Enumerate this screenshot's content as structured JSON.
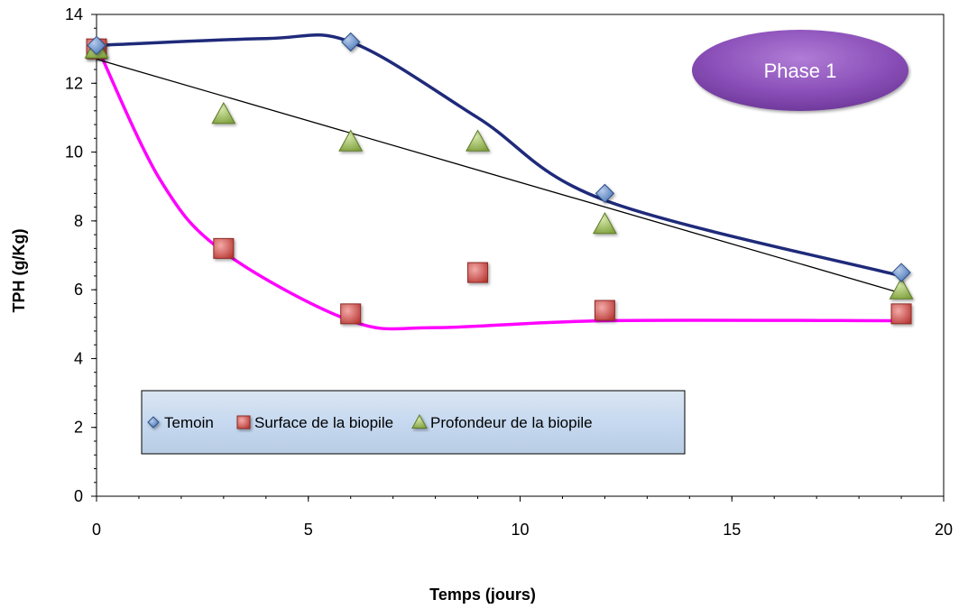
{
  "chart_data": {
    "type": "scatter",
    "xlabel": "Temps (jours)",
    "ylabel": "TPH (g/Kg)",
    "xlim": [
      0,
      20
    ],
    "ylim": [
      0,
      14
    ],
    "x_ticks": [
      0,
      5,
      10,
      15,
      20
    ],
    "y_ticks": [
      0,
      2,
      4,
      6,
      8,
      10,
      12,
      14
    ],
    "grid": false,
    "legend_position": "lower-left inside plot",
    "annotation": "Phase 1",
    "series": [
      {
        "name": "Temoin",
        "marker": "diamond",
        "color": "#4f81bd",
        "x": [
          0,
          6,
          12,
          19
        ],
        "y": [
          13.1,
          13.2,
          8.8,
          6.5
        ]
      },
      {
        "name": "Surface de la biopile",
        "marker": "square",
        "color": "#c0504d",
        "x": [
          0,
          3,
          6,
          9,
          12,
          19
        ],
        "y": [
          13.0,
          7.2,
          5.3,
          6.5,
          5.4,
          5.3
        ]
      },
      {
        "name": "Profondeur de la biopile",
        "marker": "triangle",
        "color": "#9bbb59",
        "x": [
          0,
          3,
          6,
          9,
          12,
          19
        ],
        "y": [
          13.0,
          11.1,
          10.3,
          10.3,
          7.9,
          6.0
        ]
      }
    ],
    "fit_lines": [
      {
        "kind": "smooth-curve",
        "color": "#1f2a7a",
        "x": [
          0,
          4,
          6,
          9,
          12,
          19
        ],
        "y": [
          13.1,
          13.3,
          13.2,
          11.0,
          8.6,
          6.4
        ]
      },
      {
        "kind": "smooth-curve",
        "color": "#ff00ff",
        "x": [
          0,
          1.5,
          3,
          6,
          8,
          12,
          19
        ],
        "y": [
          13.1,
          9.2,
          7.1,
          5.1,
          4.9,
          5.1,
          5.1
        ]
      },
      {
        "kind": "linear",
        "color": "#000000",
        "x": [
          0,
          19
        ],
        "y": [
          12.7,
          5.9
        ]
      }
    ]
  }
}
